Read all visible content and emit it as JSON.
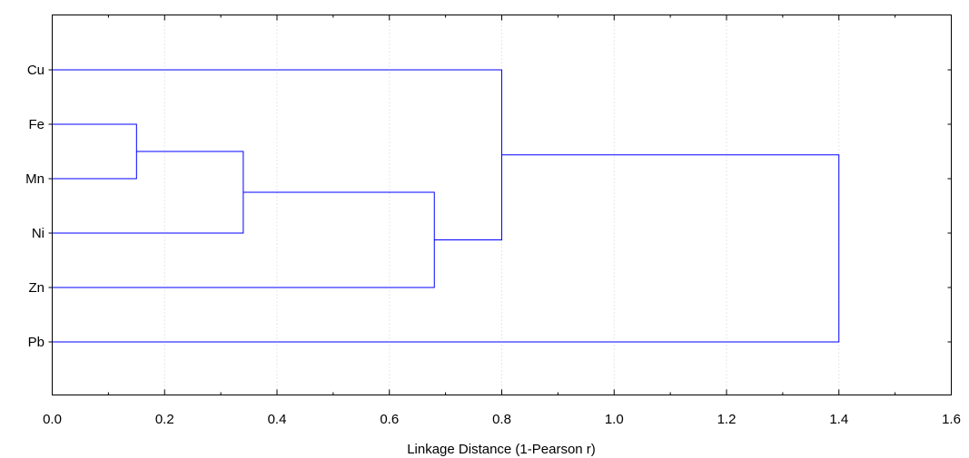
{
  "chart_data": {
    "type": "dendrogram",
    "leaves": [
      "Cu",
      "Fe",
      "Mn",
      "Ni",
      "Zn",
      "Pb"
    ],
    "merges": [
      {
        "left": "Fe",
        "right": "Mn",
        "distance": 0.15
      },
      {
        "left": "Fe+Mn",
        "right": "Ni",
        "distance": 0.34
      },
      {
        "left": "Fe+Mn+Ni",
        "right": "Zn",
        "distance": 0.68
      },
      {
        "left": "Cu",
        "right": "Fe+Mn+Ni+Zn",
        "distance": 0.8
      },
      {
        "left": "Cu+Fe+Mn+Ni+Zn",
        "right": "Pb",
        "distance": 1.4
      }
    ],
    "x_ticks": [
      "0.0",
      "0.2",
      "0.4",
      "0.6",
      "0.8",
      "1.0",
      "1.2",
      "1.4",
      "1.6"
    ],
    "xlim": [
      0,
      1.6
    ],
    "xlabel": "Linkage Distance (1-Pearson r)",
    "ylabel": "",
    "title": "",
    "grid": "vertical dotted",
    "line_color": "#0000ff"
  }
}
